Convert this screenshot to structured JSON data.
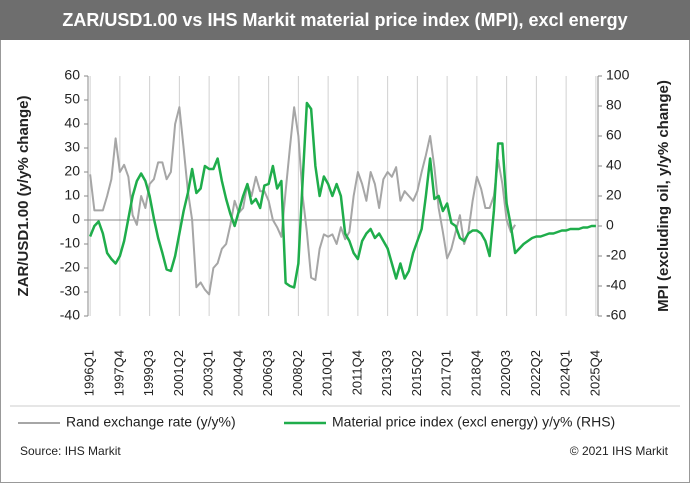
{
  "chart_data": {
    "type": "line",
    "title": "ZAR/USD1.00 vs IHS Markit material price index (MPI), excl energy",
    "y_label": "ZAR/USD1.00 (y/y% change)",
    "y2_label": "MPI (excluding oil, y/y% change)",
    "source": "Source: IHS Markit",
    "copyright": "© 2021 IHS Markit",
    "categories": [
      "1996Q1",
      null,
      null,
      null,
      null,
      null,
      null,
      "1997Q4",
      null,
      null,
      null,
      null,
      null,
      null,
      "1999Q3",
      null,
      null,
      null,
      null,
      null,
      null,
      "2001Q2",
      null,
      null,
      null,
      null,
      null,
      null,
      "2003Q1",
      null,
      null,
      null,
      null,
      null,
      null,
      "2004Q4",
      null,
      null,
      null,
      null,
      null,
      null,
      "2006Q3",
      null,
      null,
      null,
      null,
      null,
      null,
      "2008Q2",
      null,
      null,
      null,
      null,
      null,
      null,
      "2010Q1",
      null,
      null,
      null,
      null,
      null,
      null,
      "2011Q4",
      null,
      null,
      null,
      null,
      null,
      null,
      "2013Q3",
      null,
      null,
      null,
      null,
      null,
      null,
      "2015Q2",
      null,
      null,
      null,
      null,
      null,
      null,
      "2017Q1",
      null,
      null,
      null,
      null,
      null,
      null,
      "2018Q4",
      null,
      null,
      null,
      null,
      null,
      null,
      "2020Q3",
      null,
      null,
      null,
      null,
      null,
      null,
      "2022Q2",
      null,
      null,
      null,
      null,
      null,
      null,
      "2024Q1",
      null,
      null,
      null,
      null,
      null,
      null,
      "2025Q4"
    ],
    "series": [
      {
        "name": "Rand exchange rate (y/y%)",
        "color": "#a6a6a6",
        "axis": "y",
        "values": [
          19,
          4,
          4,
          4,
          10,
          17,
          34,
          20,
          23,
          18,
          2,
          -2,
          10,
          5,
          15,
          17,
          24,
          24,
          17,
          20,
          40,
          47,
          30,
          12,
          0,
          -28,
          -26,
          -29,
          -31,
          -20,
          -18,
          -12,
          -10,
          -2,
          8,
          3,
          5,
          15,
          10,
          18,
          12,
          12,
          8,
          0,
          -3,
          -7,
          12,
          30,
          47,
          35,
          10,
          -5,
          -24,
          -25,
          -12,
          -6,
          -7,
          -6,
          -10,
          -3,
          -8,
          -5,
          10,
          20,
          15,
          8,
          20,
          15,
          5,
          17,
          20,
          18,
          22,
          8,
          12,
          10,
          8,
          12,
          20,
          27,
          35,
          22,
          5,
          -5,
          -16,
          -12,
          -5,
          2,
          -10,
          -5,
          8,
          18,
          13,
          5,
          5,
          10,
          25,
          15,
          0,
          -5,
          -2,
          null,
          null,
          null,
          null,
          null,
          null,
          null,
          null,
          null,
          null,
          null,
          null,
          null,
          null,
          null,
          null,
          null,
          null,
          null
        ]
      },
      {
        "name": "Material price index (excl energy) y/y% (RHS)",
        "color": "#1fad4b",
        "axis": "y2",
        "values": [
          -7,
          0,
          3,
          -5,
          -18,
          -22,
          -25,
          -20,
          -10,
          5,
          20,
          30,
          35,
          30,
          20,
          5,
          -8,
          -18,
          -29,
          -30,
          -20,
          -5,
          10,
          22,
          38,
          22,
          25,
          40,
          38,
          38,
          45,
          30,
          18,
          8,
          0,
          10,
          20,
          28,
          15,
          18,
          12,
          27,
          28,
          40,
          25,
          30,
          -38,
          -40,
          -41,
          -25,
          30,
          82,
          78,
          40,
          20,
          33,
          28,
          20,
          28,
          20,
          -5,
          -10,
          -18,
          -22,
          -10,
          -5,
          -2,
          -8,
          -5,
          -10,
          -15,
          -25,
          -35,
          -25,
          -35,
          -30,
          -18,
          -10,
          -2,
          20,
          45,
          18,
          20,
          10,
          15,
          2,
          0,
          -8,
          -10,
          -5,
          -3,
          -3,
          -5,
          -10,
          -20,
          10,
          55,
          55,
          15,
          0,
          -18,
          -15,
          -12,
          -10,
          -8,
          -7,
          -7,
          -6,
          -5,
          -5,
          -4,
          -3,
          -3,
          -2,
          -2,
          -2,
          -1,
          -1,
          0,
          0
        ]
      }
    ],
    "ylim": [
      -40,
      60
    ],
    "yticks": [
      -40,
      -30,
      -20,
      -10,
      0,
      10,
      20,
      30,
      40,
      50,
      60
    ],
    "y2lim": [
      -60,
      100
    ],
    "y2ticks": [
      -60,
      -40,
      -20,
      0,
      20,
      40,
      60,
      80,
      100
    ],
    "legend": "bottom"
  }
}
